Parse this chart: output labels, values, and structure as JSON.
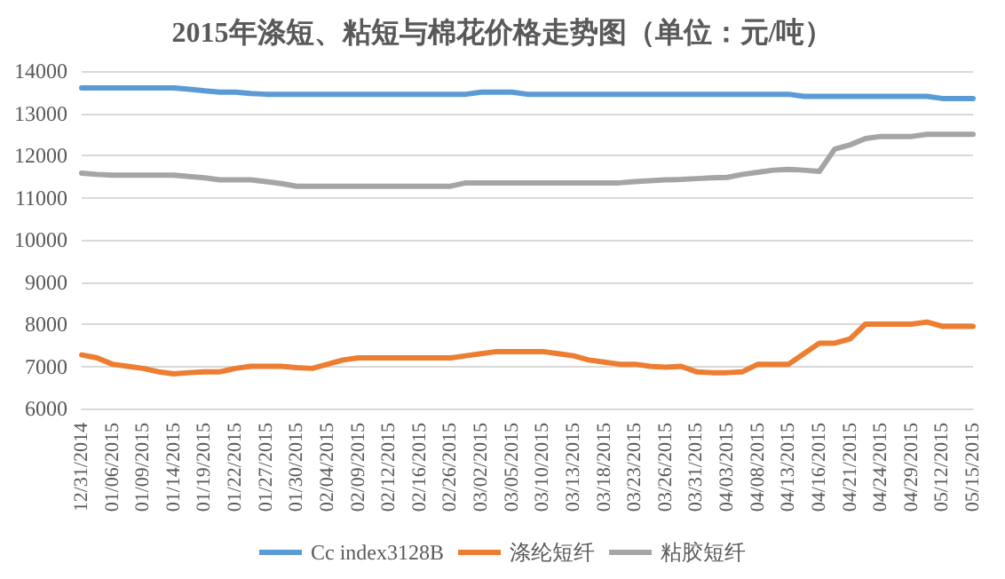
{
  "chart_data": {
    "type": "line",
    "title": "2015年涤短、粘短与棉花价格走势图（单位：元/吨）",
    "categories": [
      "12/31/2014",
      null,
      "01/06/2015",
      null,
      "01/09/2015",
      null,
      "01/14/2015",
      null,
      "01/19/2015",
      null,
      "01/22/2015",
      null,
      "01/27/2015",
      null,
      "01/30/2015",
      null,
      "02/04/2015",
      null,
      "02/09/2015",
      null,
      "02/12/2015",
      null,
      "02/16/2015",
      null,
      "02/26/2015",
      null,
      "03/02/2015",
      null,
      "03/05/2015",
      null,
      "03/10/2015",
      null,
      "03/13/2015",
      null,
      "03/18/2015",
      null,
      "03/23/2015",
      null,
      "03/26/2015",
      null,
      "03/31/2015",
      null,
      "04/03/2015",
      null,
      "04/08/2015",
      null,
      "04/13/2015",
      null,
      "04/16/2015",
      null,
      "04/21/2015",
      null,
      "04/24/2015",
      null,
      "04/29/2015",
      null,
      "05/12/2015",
      null,
      "05/15/2015"
    ],
    "series": [
      {
        "name": "Cc index3128B",
        "color": "#5b9bd5",
        "values": [
          13600,
          13600,
          13600,
          13600,
          13600,
          13600,
          13600,
          13570,
          13530,
          13500,
          13500,
          13470,
          13450,
          13450,
          13450,
          13450,
          13450,
          13450,
          13450,
          13450,
          13450,
          13450,
          13450,
          13450,
          13450,
          13450,
          13500,
          13500,
          13500,
          13450,
          13450,
          13450,
          13450,
          13450,
          13450,
          13450,
          13450,
          13450,
          13450,
          13450,
          13450,
          13450,
          13450,
          13450,
          13450,
          13450,
          13450,
          13400,
          13400,
          13400,
          13400,
          13400,
          13400,
          13400,
          13400,
          13400,
          13350,
          13350,
          13350
        ]
      },
      {
        "name": "涤纶短纤",
        "color": "#ed7d31",
        "values": [
          7270,
          7200,
          7050,
          7000,
          6950,
          6870,
          6820,
          6850,
          6870,
          6870,
          6950,
          7000,
          7000,
          7000,
          6970,
          6950,
          7050,
          7150,
          7200,
          7200,
          7200,
          7200,
          7200,
          7200,
          7200,
          7250,
          7300,
          7350,
          7350,
          7350,
          7350,
          7300,
          7250,
          7150,
          7100,
          7050,
          7050,
          7000,
          6980,
          7000,
          6870,
          6850,
          6850,
          6870,
          7050,
          7050,
          7050,
          7300,
          7550,
          7550,
          7650,
          8000,
          8000,
          8000,
          8000,
          8050,
          7950,
          7950,
          7950
        ]
      },
      {
        "name": "粘胶短纤",
        "color": "#a5a5a5",
        "values": [
          11580,
          11550,
          11530,
          11530,
          11530,
          11530,
          11530,
          11500,
          11470,
          11420,
          11420,
          11420,
          11380,
          11330,
          11270,
          11270,
          11270,
          11270,
          11270,
          11270,
          11270,
          11270,
          11270,
          11270,
          11270,
          11350,
          11350,
          11350,
          11350,
          11350,
          11350,
          11350,
          11350,
          11350,
          11350,
          11350,
          11380,
          11400,
          11420,
          11430,
          11450,
          11470,
          11480,
          11550,
          11600,
          11650,
          11670,
          11650,
          11620,
          12150,
          12250,
          12400,
          12450,
          12450,
          12450,
          12500,
          12500,
          12500,
          12500
        ]
      }
    ],
    "ylim": [
      6000,
      14000
    ],
    "yticks": [
      6000,
      7000,
      8000,
      9000,
      10000,
      11000,
      12000,
      13000,
      14000
    ],
    "grid": "y",
    "legend": "bottom",
    "marker": "none",
    "line_style": "solid"
  }
}
